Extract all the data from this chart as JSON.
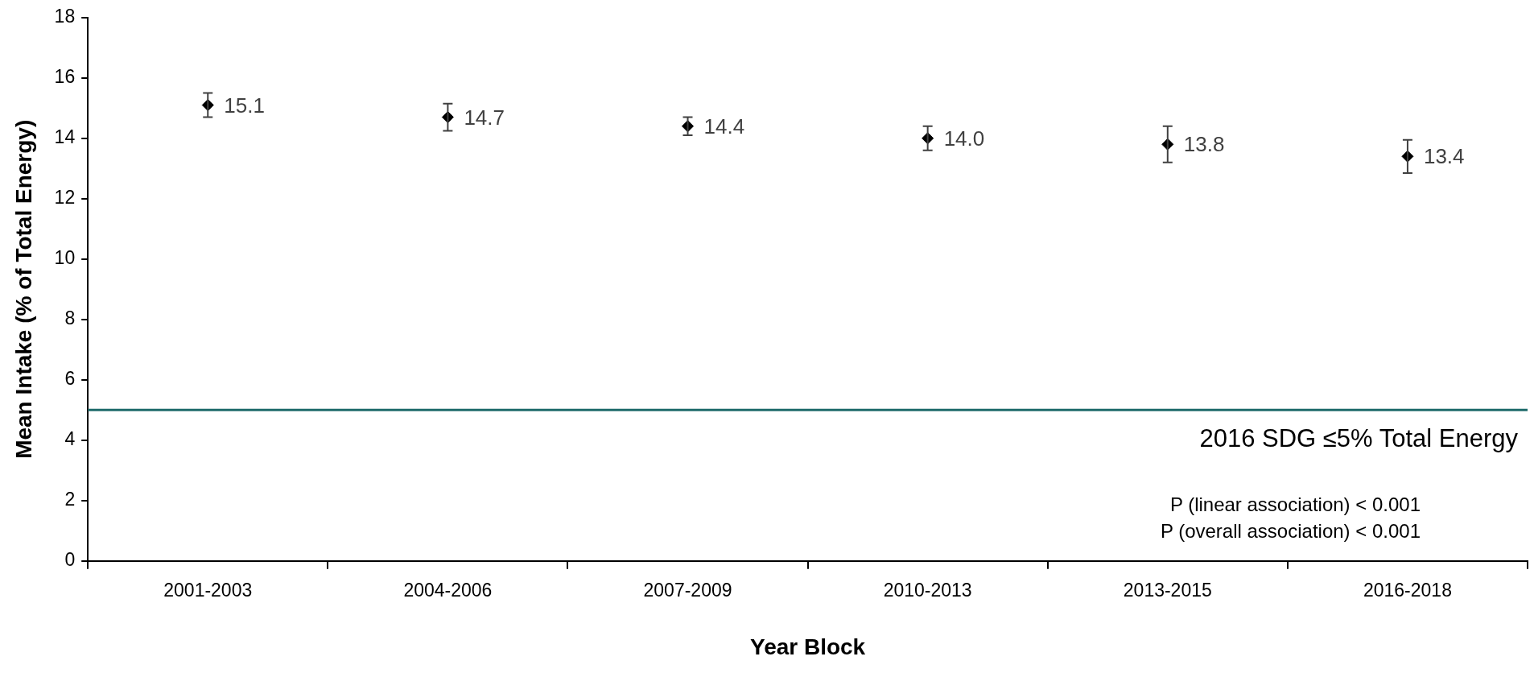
{
  "chart_data": {
    "type": "scatter",
    "xlabel": "Year Block",
    "ylabel": "Mean Intake (% of Total Energy)",
    "categories": [
      "2001-2003",
      "2004-2006",
      "2007-2009",
      "2010-2013",
      "2013-2015",
      "2016-2018"
    ],
    "series": [
      {
        "color": "#000000",
        "values": [
          15.1,
          14.7,
          14.4,
          14.0,
          13.8,
          13.4
        ],
        "value_labels": [
          "15.1",
          "14.7",
          "14.4",
          "14.0",
          "13.8",
          "13.4"
        ],
        "errors": [
          0.4,
          0.45,
          0.3,
          0.4,
          0.6,
          0.55
        ]
      }
    ],
    "marker": "diamond",
    "grid": false,
    "legend": false,
    "ylim": [
      0,
      18
    ],
    "yticks": [
      0,
      2,
      4,
      6,
      8,
      10,
      12,
      14,
      16,
      18
    ],
    "ref_lines": [
      {
        "axis": "y",
        "value": 5,
        "label": "2016 SDG ≤5% Total Energy",
        "color": "#1f6b6b"
      }
    ],
    "annotations": [
      "P (linear association) < 0.001",
      "P (overall association) < 0.001"
    ]
  }
}
